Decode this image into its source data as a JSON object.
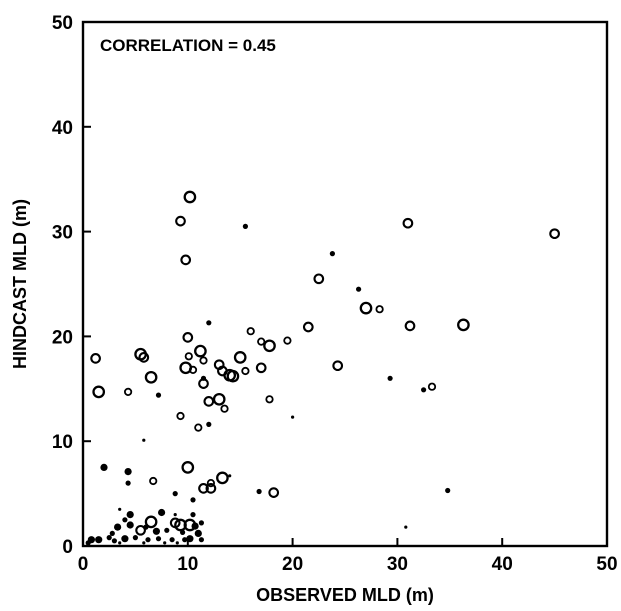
{
  "chart_data": {
    "type": "scatter",
    "title": "",
    "annotation": "CORRELATION = 0.45",
    "xlabel": "OBSERVED MLD (m)",
    "ylabel": "HINDCAST MLD (m)",
    "xlim": [
      0,
      50
    ],
    "ylim": [
      0,
      50
    ],
    "xticks": [
      0,
      10,
      20,
      30,
      40,
      50
    ],
    "yticks": [
      0,
      10,
      20,
      30,
      40,
      50
    ],
    "xtick_labels": [
      "0",
      "10",
      "20",
      "30",
      "40",
      "50"
    ],
    "ytick_labels": [
      "0",
      "10",
      "20",
      "30",
      "40",
      "50"
    ],
    "grid": false,
    "legend": "none",
    "colors": {
      "axis": "#000000",
      "marker": "#000000",
      "background": "#ffffff"
    },
    "points": [
      {
        "x": 10.2,
        "y": 33.3,
        "style": "open-large"
      },
      {
        "x": 9.3,
        "y": 31.0,
        "style": "open-medium"
      },
      {
        "x": 15.5,
        "y": 30.5,
        "style": "filled-small"
      },
      {
        "x": 31.0,
        "y": 30.8,
        "style": "open-medium"
      },
      {
        "x": 45.0,
        "y": 29.8,
        "style": "open-medium"
      },
      {
        "x": 9.8,
        "y": 27.3,
        "style": "open-medium"
      },
      {
        "x": 23.8,
        "y": 27.9,
        "style": "filled-small"
      },
      {
        "x": 22.5,
        "y": 25.5,
        "style": "open-medium"
      },
      {
        "x": 26.3,
        "y": 24.5,
        "style": "filled-small"
      },
      {
        "x": 27.0,
        "y": 22.7,
        "style": "open-large"
      },
      {
        "x": 28.3,
        "y": 22.6,
        "style": "open-small"
      },
      {
        "x": 12.0,
        "y": 21.3,
        "style": "filled-small"
      },
      {
        "x": 21.5,
        "y": 20.9,
        "style": "open-medium"
      },
      {
        "x": 31.2,
        "y": 21.0,
        "style": "open-medium"
      },
      {
        "x": 36.3,
        "y": 21.1,
        "style": "open-large"
      },
      {
        "x": 16.0,
        "y": 20.5,
        "style": "open-small"
      },
      {
        "x": 1.2,
        "y": 17.9,
        "style": "open-medium"
      },
      {
        "x": 1.5,
        "y": 14.7,
        "style": "open-large"
      },
      {
        "x": 5.5,
        "y": 18.3,
        "style": "open-large"
      },
      {
        "x": 5.8,
        "y": 18.0,
        "style": "open-medium"
      },
      {
        "x": 10.0,
        "y": 19.9,
        "style": "open-medium"
      },
      {
        "x": 11.2,
        "y": 18.6,
        "style": "open-large"
      },
      {
        "x": 10.1,
        "y": 18.1,
        "style": "open-small"
      },
      {
        "x": 9.8,
        "y": 17.0,
        "style": "open-large"
      },
      {
        "x": 11.5,
        "y": 17.7,
        "style": "open-small"
      },
      {
        "x": 15.0,
        "y": 18.0,
        "style": "open-large"
      },
      {
        "x": 17.0,
        "y": 19.5,
        "style": "open-small"
      },
      {
        "x": 17.8,
        "y": 19.1,
        "style": "open-large"
      },
      {
        "x": 19.5,
        "y": 19.6,
        "style": "open-small"
      },
      {
        "x": 13.0,
        "y": 17.3,
        "style": "open-medium"
      },
      {
        "x": 17.0,
        "y": 17.0,
        "style": "open-medium"
      },
      {
        "x": 24.3,
        "y": 17.2,
        "style": "open-medium"
      },
      {
        "x": 6.5,
        "y": 16.1,
        "style": "open-large"
      },
      {
        "x": 10.5,
        "y": 16.8,
        "style": "open-small"
      },
      {
        "x": 11.5,
        "y": 16.0,
        "style": "filled-small"
      },
      {
        "x": 11.5,
        "y": 15.5,
        "style": "open-medium"
      },
      {
        "x": 13.3,
        "y": 16.7,
        "style": "open-medium"
      },
      {
        "x": 14.0,
        "y": 16.3,
        "style": "open-large"
      },
      {
        "x": 14.3,
        "y": 16.2,
        "style": "open-large"
      },
      {
        "x": 15.5,
        "y": 16.7,
        "style": "open-small"
      },
      {
        "x": 4.3,
        "y": 14.7,
        "style": "open-small"
      },
      {
        "x": 7.2,
        "y": 14.4,
        "style": "filled-small"
      },
      {
        "x": 13.0,
        "y": 14.0,
        "style": "open-large"
      },
      {
        "x": 12.0,
        "y": 13.8,
        "style": "open-medium"
      },
      {
        "x": 17.8,
        "y": 14.0,
        "style": "open-small"
      },
      {
        "x": 13.5,
        "y": 13.1,
        "style": "open-small"
      },
      {
        "x": 29.3,
        "y": 16.0,
        "style": "filled-small"
      },
      {
        "x": 32.5,
        "y": 14.9,
        "style": "filled-small"
      },
      {
        "x": 33.3,
        "y": 15.2,
        "style": "open-small"
      },
      {
        "x": 9.3,
        "y": 12.4,
        "style": "open-small"
      },
      {
        "x": 11.0,
        "y": 11.3,
        "style": "open-small"
      },
      {
        "x": 12.0,
        "y": 11.6,
        "style": "filled-small"
      },
      {
        "x": 20.0,
        "y": 12.3,
        "style": "filled-tiny"
      },
      {
        "x": 5.8,
        "y": 10.1,
        "style": "filled-tiny"
      },
      {
        "x": 2.0,
        "y": 7.5,
        "style": "filled-medium"
      },
      {
        "x": 4.3,
        "y": 7.1,
        "style": "filled-medium"
      },
      {
        "x": 10.0,
        "y": 7.5,
        "style": "open-large"
      },
      {
        "x": 6.7,
        "y": 6.2,
        "style": "open-small"
      },
      {
        "x": 4.3,
        "y": 6.0,
        "style": "filled-small"
      },
      {
        "x": 12.2,
        "y": 6.0,
        "style": "open-small"
      },
      {
        "x": 13.3,
        "y": 6.5,
        "style": "open-large"
      },
      {
        "x": 11.5,
        "y": 5.5,
        "style": "open-medium"
      },
      {
        "x": 12.2,
        "y": 5.5,
        "style": "open-medium"
      },
      {
        "x": 14.0,
        "y": 6.7,
        "style": "filled-tiny"
      },
      {
        "x": 16.8,
        "y": 5.2,
        "style": "filled-small"
      },
      {
        "x": 18.2,
        "y": 5.1,
        "style": "open-medium"
      },
      {
        "x": 34.8,
        "y": 5.3,
        "style": "filled-small"
      },
      {
        "x": 8.8,
        "y": 5.0,
        "style": "filled-small"
      },
      {
        "x": 10.5,
        "y": 4.4,
        "style": "filled-small"
      },
      {
        "x": 30.8,
        "y": 1.8,
        "style": "filled-tiny"
      },
      {
        "x": 3.5,
        "y": 3.5,
        "style": "filled-tiny"
      },
      {
        "x": 4.5,
        "y": 3.0,
        "style": "filled-medium"
      },
      {
        "x": 7.5,
        "y": 3.2,
        "style": "filled-medium"
      },
      {
        "x": 8.8,
        "y": 3.0,
        "style": "filled-tiny"
      },
      {
        "x": 10.5,
        "y": 3.0,
        "style": "filled-small"
      },
      {
        "x": 4.0,
        "y": 2.5,
        "style": "filled-small"
      },
      {
        "x": 4.5,
        "y": 2.0,
        "style": "filled-medium"
      },
      {
        "x": 6.5,
        "y": 2.3,
        "style": "open-large"
      },
      {
        "x": 6.0,
        "y": 1.8,
        "style": "filled-small"
      },
      {
        "x": 8.8,
        "y": 2.2,
        "style": "open-medium"
      },
      {
        "x": 9.3,
        "y": 2.0,
        "style": "open-large"
      },
      {
        "x": 10.2,
        "y": 2.0,
        "style": "open-large"
      },
      {
        "x": 10.7,
        "y": 1.9,
        "style": "filled-medium"
      },
      {
        "x": 11.3,
        "y": 2.2,
        "style": "filled-small"
      },
      {
        "x": 3.3,
        "y": 1.8,
        "style": "filled-medium"
      },
      {
        "x": 2.8,
        "y": 1.2,
        "style": "filled-small"
      },
      {
        "x": 5.5,
        "y": 1.5,
        "style": "open-medium"
      },
      {
        "x": 7.0,
        "y": 1.4,
        "style": "filled-medium"
      },
      {
        "x": 8.0,
        "y": 1.5,
        "style": "filled-small"
      },
      {
        "x": 9.5,
        "y": 1.3,
        "style": "filled-small"
      },
      {
        "x": 11.0,
        "y": 1.2,
        "style": "filled-medium"
      },
      {
        "x": 0.8,
        "y": 0.6,
        "style": "filled-medium"
      },
      {
        "x": 1.5,
        "y": 0.6,
        "style": "filled-medium"
      },
      {
        "x": 2.5,
        "y": 0.8,
        "style": "filled-small"
      },
      {
        "x": 3.0,
        "y": 0.5,
        "style": "filled-small"
      },
      {
        "x": 4.0,
        "y": 0.7,
        "style": "filled-medium"
      },
      {
        "x": 5.0,
        "y": 0.8,
        "style": "filled-small"
      },
      {
        "x": 6.2,
        "y": 0.6,
        "style": "filled-small"
      },
      {
        "x": 7.2,
        "y": 0.7,
        "style": "filled-small"
      },
      {
        "x": 8.5,
        "y": 0.6,
        "style": "filled-small"
      },
      {
        "x": 9.7,
        "y": 0.6,
        "style": "filled-small"
      },
      {
        "x": 10.2,
        "y": 0.7,
        "style": "filled-medium"
      },
      {
        "x": 11.3,
        "y": 0.6,
        "style": "filled-small"
      },
      {
        "x": 0.5,
        "y": 0.3,
        "style": "filled-small"
      },
      {
        "x": 3.5,
        "y": 0.3,
        "style": "filled-tiny"
      },
      {
        "x": 5.8,
        "y": 0.3,
        "style": "filled-tiny"
      },
      {
        "x": 7.8,
        "y": 0.3,
        "style": "filled-tiny"
      },
      {
        "x": 9.0,
        "y": 0.3,
        "style": "filled-tiny"
      }
    ]
  }
}
